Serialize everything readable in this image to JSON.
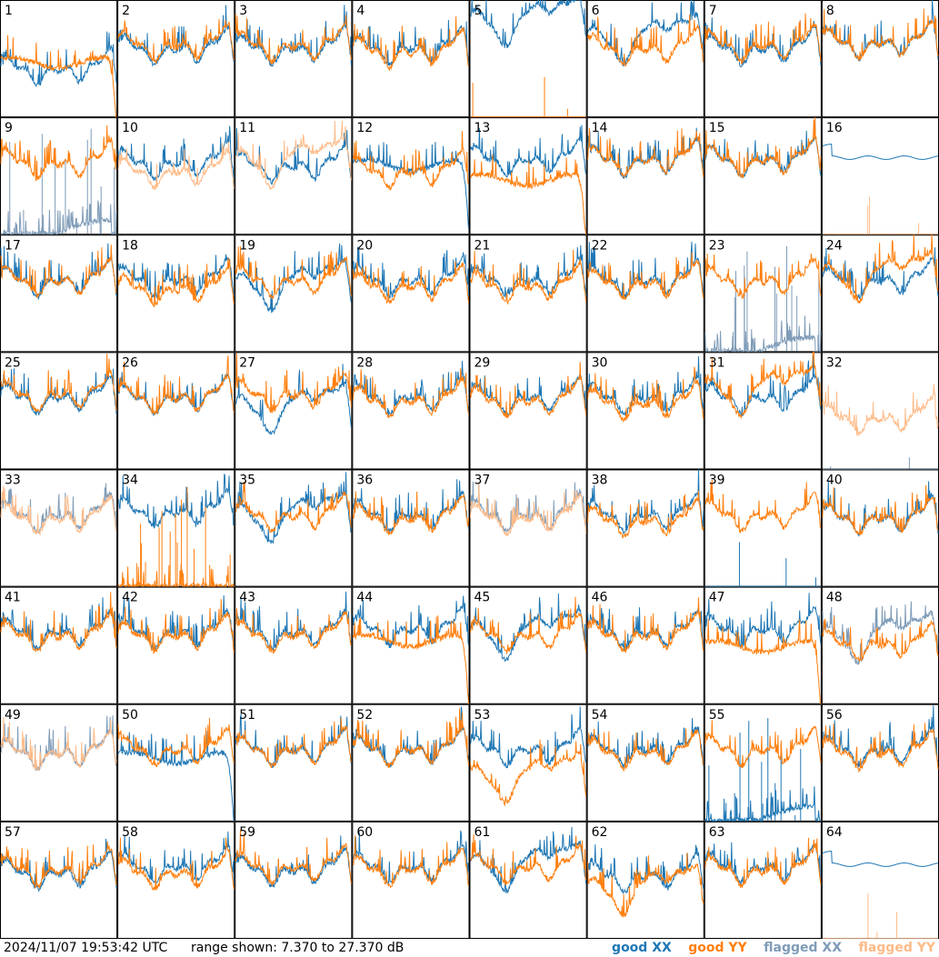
{
  "colors": {
    "good_xx": "#1f77b4",
    "good_yy": "#ff7f0e",
    "flagged_xx": "#7f9cb8",
    "flagged_yy": "#ffbb88"
  },
  "footer": {
    "timestamp": "2024/11/07 19:53:42 UTC",
    "range_text": "range shown: 7.370 to 27.370 dB"
  },
  "legend": [
    {
      "label": "good XX",
      "color": "#1f77b4"
    },
    {
      "label": "good YY",
      "color": "#ff7f0e"
    },
    {
      "label": "flagged XX",
      "color": "#7f9cb8"
    },
    {
      "label": "flagged YY",
      "color": "#ffbb88"
    }
  ],
  "chart_data": {
    "type": "line",
    "layout": "small-multiples 8x8",
    "ylim_db": [
      7.37,
      27.37
    ],
    "grid": false,
    "legend_placement": "bottom-right",
    "series_names": [
      "good XX",
      "good YY",
      "flagged XX",
      "flagged YY"
    ],
    "panels": [
      {
        "id": 1,
        "xx": "normal",
        "yy": "highdrop",
        "xx_level": 16.5,
        "yy_level": 17.5
      },
      {
        "id": 2,
        "xx": "normal",
        "yy": "normal",
        "xx_level": 20,
        "yy_level": 20.5
      },
      {
        "id": 3,
        "xx": "normal",
        "yy": "normal",
        "xx_level": 20,
        "yy_level": 20.5
      },
      {
        "id": 4,
        "xx": "normal",
        "yy": "normal",
        "xx_level": 20,
        "yy_level": 19.5
      },
      {
        "id": 5,
        "xx": "dip",
        "yy": "dead",
        "xx_level": 22,
        "yy_level": 7.5
      },
      {
        "id": 6,
        "xx": "dip",
        "yy": "normal",
        "xx_level": 19,
        "yy_level": 20
      },
      {
        "id": 7,
        "xx": "normal",
        "yy": "normal",
        "xx_level": 20,
        "yy_level": 20.5
      },
      {
        "id": 8,
        "xx": "normal",
        "yy": "normal",
        "xx_level": 21,
        "yy_level": 21
      },
      {
        "id": 9,
        "xx": "flaggedspikes",
        "yy": "normal",
        "xx_level": 8,
        "yy_level": 20.5,
        "xx_flagged": true
      },
      {
        "id": 10,
        "xx": "normal",
        "yy": "normal",
        "xx_level": 20.5,
        "yy_level": 19,
        "yy_flagged": true
      },
      {
        "id": 11,
        "xx": "normal",
        "yy": "dip",
        "xx_level": 20,
        "yy_level": 18,
        "yy_flagged": true
      },
      {
        "id": 12,
        "xx": "drop",
        "yy": "normal",
        "xx_level": 20,
        "yy_level": 19
      },
      {
        "id": 13,
        "xx": "normal",
        "yy": "highdrop",
        "xx_level": 21,
        "yy_level": 17.5
      },
      {
        "id": 14,
        "xx": "normal",
        "yy": "normal",
        "xx_level": 21,
        "yy_level": 21
      },
      {
        "id": 15,
        "xx": "normal",
        "yy": "normal",
        "xx_level": 21,
        "yy_level": 21
      },
      {
        "id": 16,
        "xx": "flat",
        "yy": "dead",
        "xx_level": 20.5,
        "yy_level": 7.5,
        "yy_flagged": true
      },
      {
        "id": 17,
        "xx": "normal",
        "yy": "normal",
        "xx_level": 20.5,
        "yy_level": 20.5
      },
      {
        "id": 18,
        "xx": "normal",
        "yy": "normal",
        "xx_level": 20.5,
        "yy_level": 19
      },
      {
        "id": 19,
        "xx": "dip",
        "yy": "normal",
        "xx_level": 17,
        "yy_level": 20.5
      },
      {
        "id": 20,
        "xx": "normal",
        "yy": "normal",
        "xx_level": 20.5,
        "yy_level": 19.5
      },
      {
        "id": 21,
        "xx": "normal",
        "yy": "normal",
        "xx_level": 20.5,
        "yy_level": 19.5
      },
      {
        "id": 22,
        "xx": "normal",
        "yy": "normal",
        "xx_level": 20.5,
        "yy_level": 20
      },
      {
        "id": 23,
        "xx": "flaggedspikes",
        "yy": "normal",
        "xx_level": 8,
        "yy_level": 20.5,
        "xx_flagged": true
      },
      {
        "id": 24,
        "xx": "normal",
        "yy": "dip",
        "xx_level": 20.5,
        "yy_level": 18.5
      },
      {
        "id": 25,
        "xx": "normal",
        "yy": "normal",
        "xx_level": 20.5,
        "yy_level": 21
      },
      {
        "id": 26,
        "xx": "normal",
        "yy": "normal",
        "xx_level": 20.5,
        "yy_level": 20.5
      },
      {
        "id": 27,
        "xx": "dip",
        "yy": "normal",
        "xx_level": 16,
        "yy_level": 21
      },
      {
        "id": 28,
        "xx": "normal",
        "yy": "normal",
        "xx_level": 20.5,
        "yy_level": 20
      },
      {
        "id": 29,
        "xx": "normal",
        "yy": "normal",
        "xx_level": 20.5,
        "yy_level": 20
      },
      {
        "id": 30,
        "xx": "normal",
        "yy": "normal",
        "xx_level": 20.5,
        "yy_level": 19.5
      },
      {
        "id": 31,
        "xx": "normal",
        "yy": "dip",
        "xx_level": 20.5,
        "yy_level": 19
      },
      {
        "id": 32,
        "xx": "dead",
        "yy": "normal",
        "xx_level": 7.5,
        "yy_level": 17,
        "xx_flagged": true,
        "yy_flagged": true
      },
      {
        "id": 33,
        "xx": "normal",
        "yy": "normal",
        "xx_level": 20.5,
        "yy_level": 20,
        "xx_flagged": true,
        "yy_flagged": true
      },
      {
        "id": 34,
        "xx": "normal",
        "yy": "spiky",
        "xx_level": 21,
        "yy_level": 8
      },
      {
        "id": 35,
        "xx": "dip",
        "yy": "normal",
        "xx_level": 17.5,
        "yy_level": 20.5
      },
      {
        "id": 36,
        "xx": "normal",
        "yy": "normal",
        "xx_level": 20.5,
        "yy_level": 20
      },
      {
        "id": 37,
        "xx": "normal",
        "yy": "normal",
        "xx_level": 20.5,
        "yy_level": 20,
        "xx_flagged": true,
        "yy_flagged": true
      },
      {
        "id": 38,
        "xx": "normal",
        "yy": "normal",
        "xx_level": 20.5,
        "yy_level": 19.5
      },
      {
        "id": 39,
        "xx": "dead",
        "yy": "normal",
        "xx_level": 7.5,
        "yy_level": 20.5
      },
      {
        "id": 40,
        "xx": "normal",
        "yy": "normal",
        "xx_level": 20,
        "yy_level": 20
      },
      {
        "id": 41,
        "xx": "normal",
        "yy": "normal",
        "xx_level": 20.5,
        "yy_level": 20
      },
      {
        "id": 42,
        "xx": "normal",
        "yy": "normal",
        "xx_level": 20.5,
        "yy_level": 20
      },
      {
        "id": 43,
        "xx": "normal",
        "yy": "normal",
        "xx_level": 20.5,
        "yy_level": 20
      },
      {
        "id": 44,
        "xx": "normal",
        "yy": "highdrop",
        "xx_level": 21,
        "yy_level": 19
      },
      {
        "id": 45,
        "xx": "dip",
        "yy": "normal",
        "xx_level": 17.5,
        "yy_level": 20
      },
      {
        "id": 46,
        "xx": "normal",
        "yy": "normal",
        "xx_level": 20.5,
        "yy_level": 20
      },
      {
        "id": 47,
        "xx": "normal",
        "yy": "highdrop",
        "xx_level": 21,
        "yy_level": 18
      },
      {
        "id": 48,
        "xx": "dip",
        "yy": "normal",
        "xx_level": 17,
        "yy_level": 18.5,
        "xx_flagged": true
      },
      {
        "id": 49,
        "xx": "normal",
        "yy": "normal",
        "xx_level": 20,
        "yy_level": 20,
        "xx_flagged": true,
        "yy_flagged": true
      },
      {
        "id": 50,
        "xx": "drop",
        "yy": "normal",
        "xx_level": 19,
        "yy_level": 20.5
      },
      {
        "id": 51,
        "xx": "normal",
        "yy": "normal",
        "xx_level": 20.5,
        "yy_level": 20.5
      },
      {
        "id": 52,
        "xx": "normal",
        "yy": "normal",
        "xx_level": 20.5,
        "yy_level": 20.5
      },
      {
        "id": 53,
        "xx": "normal",
        "yy": "dip",
        "xx_level": 20.5,
        "yy_level": 13
      },
      {
        "id": 54,
        "xx": "normal",
        "yy": "normal",
        "xx_level": 20.5,
        "yy_level": 20
      },
      {
        "id": 55,
        "xx": "flaggedspikes",
        "yy": "normal",
        "xx_level": 8,
        "yy_level": 20.5
      },
      {
        "id": 56,
        "xx": "normal",
        "yy": "normal",
        "xx_level": 20.5,
        "yy_level": 20
      },
      {
        "id": 57,
        "xx": "normal",
        "yy": "normal",
        "xx_level": 19.5,
        "yy_level": 20
      },
      {
        "id": 58,
        "xx": "normal",
        "yy": "normal",
        "xx_level": 20.5,
        "yy_level": 19.5
      },
      {
        "id": 59,
        "xx": "normal",
        "yy": "normal",
        "xx_level": 20,
        "yy_level": 20.5
      },
      {
        "id": 60,
        "xx": "normal",
        "yy": "normal",
        "xx_level": 20.5,
        "yy_level": 20
      },
      {
        "id": 61,
        "xx": "dip",
        "yy": "normal",
        "xx_level": 18,
        "yy_level": 20.5
      },
      {
        "id": 62,
        "xx": "normal",
        "yy": "dip",
        "xx_level": 19,
        "yy_level": 14
      },
      {
        "id": 63,
        "xx": "normal",
        "yy": "normal",
        "xx_level": 20.5,
        "yy_level": 20
      },
      {
        "id": 64,
        "xx": "flat",
        "yy": "dead",
        "xx_level": 20,
        "yy_level": 7.5,
        "yy_flagged": true
      }
    ]
  }
}
